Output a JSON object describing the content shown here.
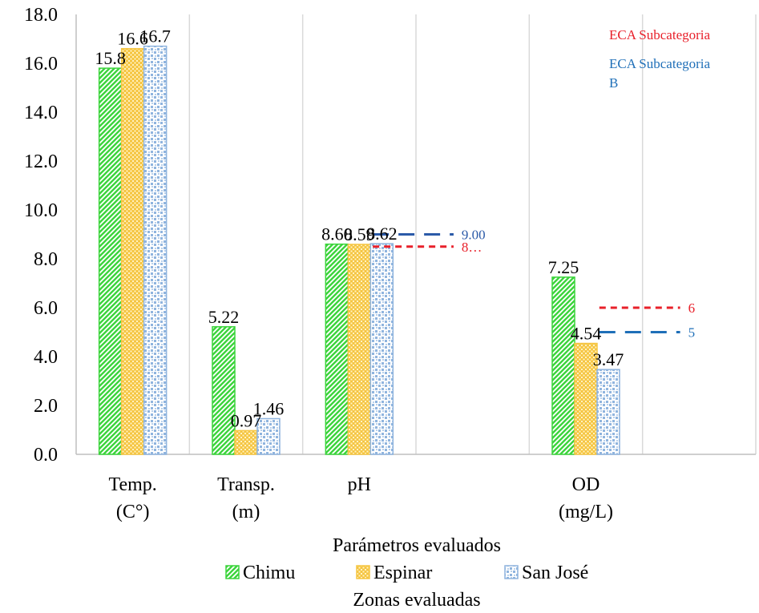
{
  "chart_data": {
    "type": "bar",
    "categories": [
      [
        "Temp.",
        "(C°)"
      ],
      [
        "Transp.",
        "(m)"
      ],
      [
        "pH"
      ],
      [
        "OD",
        "(mg/L)"
      ]
    ],
    "series": [
      {
        "name": "Chimu",
        "values": [
          15.8,
          5.22,
          8.6,
          7.25
        ],
        "labels": [
          "15.8",
          "5.22",
          "8.60",
          "7.25"
        ],
        "color": "#3cd43c"
      },
      {
        "name": "Espinar",
        "values": [
          16.6,
          0.97,
          8.59,
          4.54
        ],
        "labels": [
          "16.6",
          "0.97",
          "8.59",
          "4.54"
        ],
        "color": "#f5c542"
      },
      {
        "name": "San José",
        "values": [
          16.7,
          1.46,
          8.62,
          3.47
        ],
        "labels": [
          "16.7",
          "1.46",
          "8.62",
          "3.47"
        ],
        "color": "#8fb4de"
      }
    ],
    "yticks": [
      "0.0",
      "2.0",
      "4.0",
      "6.0",
      "8.0",
      "10.0",
      "12.0",
      "14.0",
      "16.0",
      "18.0"
    ],
    "ylim": [
      0,
      18
    ],
    "xlabel": "Parámetros evaluados",
    "legend_title": "Zonas evaluadas",
    "legend_placement": "bottom",
    "grid": "vertical",
    "reference_lines": [
      {
        "series": "ECA Subcategoria",
        "category_index": 2,
        "value": 8.5,
        "label": "8…",
        "color": "#e8202a",
        "style": "dotted"
      },
      {
        "series": "ECA Subcategoria B",
        "category_index": 2,
        "value": 9.0,
        "label": "9.00",
        "color": "#2b5aa8",
        "style": "dashed"
      },
      {
        "series": "ECA Subcategoria",
        "category_index": 3,
        "value": 6,
        "label": "6",
        "color": "#e8202a",
        "style": "dotted"
      },
      {
        "series": "ECA Subcategoria B",
        "category_index": 3,
        "value": 5,
        "label": "5",
        "color": "#1f6fb8",
        "style": "dashed"
      }
    ],
    "ref_legend": [
      {
        "text": "ECA Subcategoria",
        "color": "#e8202a"
      },
      {
        "text": "ECA Subcategoria B",
        "color": "#1f6fb8"
      }
    ]
  }
}
